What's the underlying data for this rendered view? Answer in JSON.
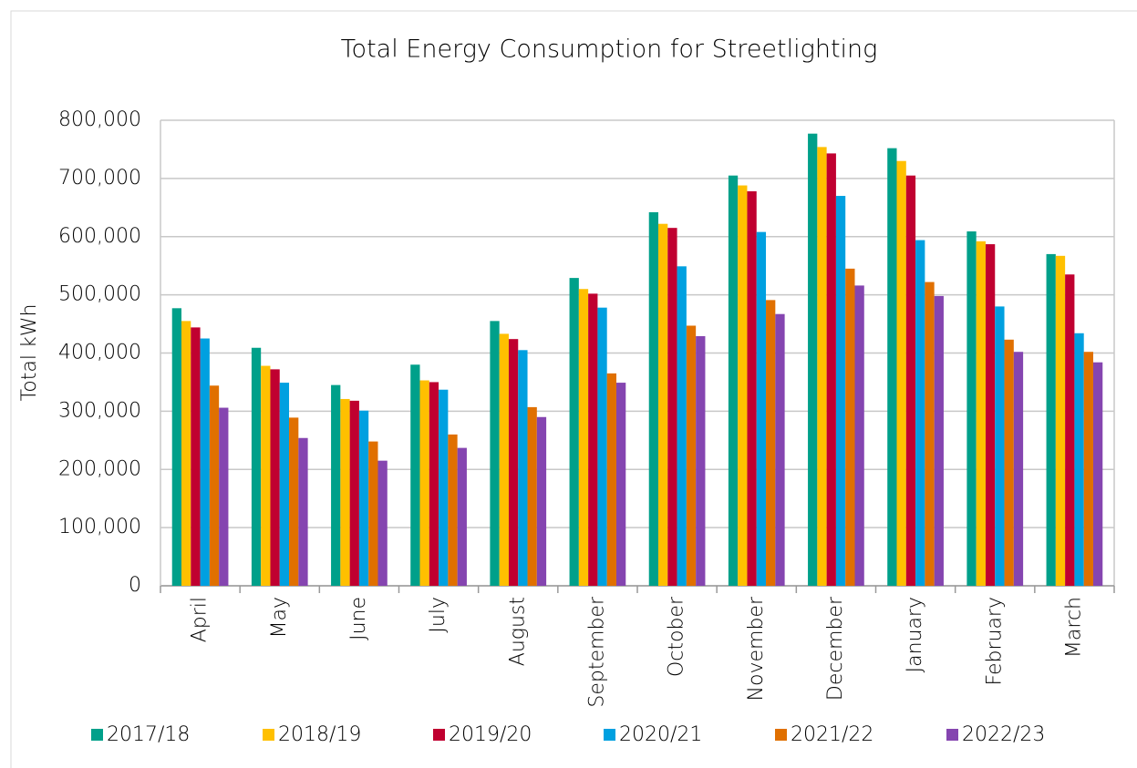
{
  "chart_data": {
    "type": "bar",
    "title": "Total Energy Consumption for Streetlighting",
    "y_label": "Total kWh",
    "categories": [
      "April",
      "May",
      "June",
      "July",
      "August",
      "September",
      "October",
      "November",
      "December",
      "January",
      "February",
      "March"
    ],
    "series": [
      {
        "name": "2017/18",
        "color": "#00a08a",
        "values": [
          477000,
          409000,
          345000,
          380000,
          455000,
          529000,
          642000,
          705000,
          777000,
          752000,
          609000,
          570000
        ]
      },
      {
        "name": "2018/19",
        "color": "#ffc000",
        "values": [
          455000,
          378000,
          321000,
          353000,
          433000,
          510000,
          622000,
          688000,
          754000,
          730000,
          592000,
          567000
        ]
      },
      {
        "name": "2019/20",
        "color": "#c00030",
        "values": [
          444000,
          372000,
          318000,
          350000,
          424000,
          502000,
          615000,
          678000,
          743000,
          705000,
          587000,
          535000
        ]
      },
      {
        "name": "2020/21",
        "color": "#00a0e0",
        "values": [
          425000,
          349000,
          301000,
          337000,
          405000,
          478000,
          549000,
          608000,
          670000,
          594000,
          480000,
          434000
        ]
      },
      {
        "name": "2021/22",
        "color": "#e07000",
        "values": [
          344000,
          289000,
          248000,
          260000,
          307000,
          365000,
          447000,
          491000,
          545000,
          522000,
          423000,
          402000
        ]
      },
      {
        "name": "2022/23",
        "color": "#8545b0",
        "values": [
          306000,
          254000,
          215000,
          237000,
          290000,
          349000,
          429000,
          467000,
          516000,
          498000,
          402000,
          384000
        ]
      }
    ],
    "ylim": [
      0,
      800000
    ],
    "yticks": [
      0,
      {
        "value": 100000,
        "label": "100,000"
      },
      {
        "value": 200000,
        "label": "200,000"
      },
      {
        "value": 300000,
        "label": "300,000"
      },
      {
        "value": 400000,
        "label": "400,000"
      },
      {
        "value": 500000,
        "label": "500,000"
      },
      {
        "value": 600000,
        "label": "600,000"
      },
      {
        "value": 700000,
        "label": "700,000"
      },
      {
        "value": 800000,
        "label": "800,000"
      }
    ],
    "grid": true,
    "legend": "bottom"
  }
}
